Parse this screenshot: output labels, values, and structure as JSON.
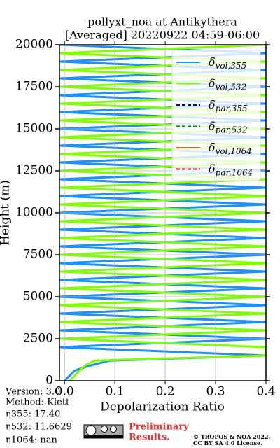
{
  "chart_data": {
    "type": "line",
    "title": [
      "pollyxt_noa at Antikythera",
      "[Averaged] 20220922 04:59-06:00"
    ],
    "x_label": "Depolarization Ratio",
    "y_label": "Height (m)",
    "xlim": [
      -0.01,
      0.4
    ],
    "ylim": [
      0,
      20000
    ],
    "xticks": [
      {
        "value": 0,
        "label": "0.0"
      },
      0.1,
      0.2,
      0.3,
      0.4
    ],
    "yticks": [
      0,
      2500,
      5000,
      7500,
      10000,
      12500,
      15000,
      17500,
      20000
    ],
    "grid": true,
    "legend": "upper right",
    "y": [
      0,
      300,
      600,
      900,
      1200,
      1500,
      2000,
      2500,
      3000,
      3500,
      4000,
      4500,
      5000,
      5500,
      6000,
      6500,
      7000,
      7500,
      8000,
      8500,
      9000,
      9500,
      10000,
      10500,
      11000,
      11500,
      12000,
      12500,
      13000,
      13500,
      14000,
      14500,
      15000,
      15500,
      16000,
      16500,
      17000,
      17500,
      18000,
      18500,
      19000,
      19500,
      20000
    ],
    "series": [
      {
        "name": "δvol,355",
        "color": "#1f8fff",
        "style": "solid",
        "values": [
          0.0,
          0.01,
          0.02,
          0.05,
          0.09,
          0.4,
          -0.01,
          0.4,
          -0.01,
          0.4,
          -0.01,
          0.4,
          -0.01,
          0.4,
          -0.01,
          0.4,
          -0.01,
          0.4,
          -0.01,
          0.4,
          -0.01,
          0.4,
          -0.01,
          0.4,
          -0.01,
          0.4,
          -0.01,
          0.4,
          -0.01,
          0.4,
          -0.01,
          0.4,
          -0.01,
          0.4,
          -0.01,
          0.4,
          -0.01,
          0.4,
          -0.01,
          0.4,
          -0.01,
          0.4,
          -0.01
        ]
      },
      {
        "name": "δvol,532",
        "color": "#80ff00",
        "style": "solid",
        "values": [
          0.01,
          0.02,
          0.03,
          0.04,
          0.06,
          0.4,
          0.4,
          -0.01,
          0.4,
          -0.01,
          0.4,
          -0.01,
          0.4,
          -0.01,
          0.4,
          -0.01,
          0.4,
          -0.01,
          0.4,
          -0.01,
          0.4,
          -0.01,
          0.4,
          -0.01,
          0.4,
          -0.01,
          0.4,
          -0.01,
          0.4,
          -0.01,
          0.4,
          -0.01,
          0.4,
          -0.01,
          0.4,
          -0.01,
          0.4,
          -0.01,
          0.4,
          -0.01,
          0.4,
          -0.01,
          0.4
        ]
      },
      {
        "name": "δpar,355",
        "color": "#00008b",
        "style": "dashed"
      },
      {
        "name": "δpar,532",
        "color": "#008040",
        "style": "dashed"
      },
      {
        "name": "δvol,1064",
        "color": "#ff6010",
        "style": "solid"
      },
      {
        "name": "δpar,1064",
        "color": "#ff0000",
        "style": "dashed"
      }
    ]
  },
  "info": [
    "Version: 3.0",
    "Method: Klett",
    "η355:  17.40",
    "η532: 11.6629",
    "η1064:    nan"
  ],
  "notice": [
    "Preliminary",
    "Results."
  ],
  "copyright": [
    "© TROPOS & NOA 2022.",
    "CC BY SA 4.0 License."
  ]
}
